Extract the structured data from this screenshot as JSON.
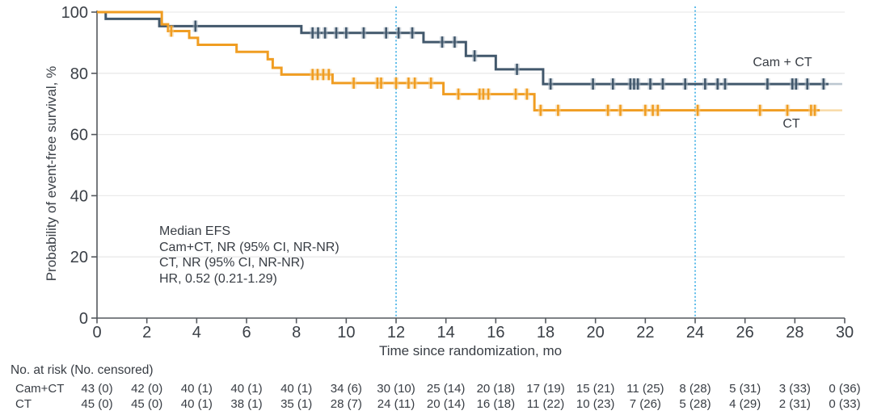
{
  "chart_data": {
    "type": "line",
    "subtype": "kaplan-meier-step",
    "title": "",
    "xlabel": "Time since randomization, mo",
    "ylabel": "Probability of event-free survival, %",
    "xlim": [
      0,
      30
    ],
    "ylim": [
      0,
      100
    ],
    "x_ticks": [
      0,
      2,
      4,
      6,
      8,
      10,
      12,
      14,
      16,
      18,
      20,
      22,
      24,
      26,
      28,
      30
    ],
    "y_ticks": [
      0,
      20,
      40,
      60,
      80,
      100
    ],
    "grid": "horizontal-light",
    "reference_lines_x": [
      12,
      24
    ],
    "legend_position": "inline-right-of-curves",
    "annotation": {
      "lines": [
        "Median EFS",
        "Cam+CT, NR (95% CI, NR-NR)",
        "CT, NR (95% CI, NR-NR)",
        "HR, 0.52 (0.21-1.29)"
      ]
    },
    "style": {
      "grid_color": "#eaeaea",
      "axis_color": "#54585e",
      "text_color": "#3a3f46",
      "reference_color": "#4fb6e8",
      "background": "#ffffff"
    },
    "series": [
      {
        "id": "cam-ct",
        "label": "Cam + CT",
        "color": "#42586c",
        "halo_color": "#aebbc6",
        "tail_color": "#bcc7d0",
        "steps": [
          [
            0,
            100
          ],
          [
            0.35,
            97.8
          ],
          [
            2.5,
            95.4
          ],
          [
            8.2,
            93.2
          ],
          [
            13.1,
            90.2
          ],
          [
            14.8,
            85.7
          ],
          [
            16.0,
            81.3
          ],
          [
            17.9,
            76.5
          ]
        ],
        "end_t": 29.35,
        "tail_t": 29.9,
        "censors": [
          [
            3.95,
            95.4
          ],
          [
            8.65,
            93.2
          ],
          [
            8.87,
            93.2
          ],
          [
            9.15,
            93.2
          ],
          [
            9.6,
            93.2
          ],
          [
            10.0,
            93.2
          ],
          [
            10.7,
            93.2
          ],
          [
            11.6,
            93.2
          ],
          [
            12.1,
            93.2
          ],
          [
            12.65,
            93.2
          ],
          [
            13.85,
            90.2
          ],
          [
            14.35,
            90.2
          ],
          [
            15.15,
            85.7
          ],
          [
            16.85,
            81.3
          ],
          [
            18.2,
            76.5
          ],
          [
            19.9,
            76.5
          ],
          [
            20.7,
            76.5
          ],
          [
            21.4,
            76.5
          ],
          [
            21.55,
            76.5
          ],
          [
            21.7,
            76.5
          ],
          [
            22.2,
            76.5
          ],
          [
            22.7,
            76.5
          ],
          [
            23.6,
            76.5
          ],
          [
            24.4,
            76.5
          ],
          [
            24.9,
            76.5
          ],
          [
            25.2,
            76.5
          ],
          [
            26.9,
            76.5
          ],
          [
            27.9,
            76.5
          ],
          [
            28.05,
            76.5
          ],
          [
            28.5,
            76.5
          ],
          [
            29.15,
            76.5
          ]
        ]
      },
      {
        "id": "ct",
        "label": "CT",
        "color": "#f09d22",
        "halo_color": "#f7d396",
        "tail_color": "#f8dcab",
        "steps": [
          [
            0,
            100
          ],
          [
            2.6,
            96.0
          ],
          [
            2.85,
            93.8
          ],
          [
            3.7,
            91.6
          ],
          [
            4.05,
            89.3
          ],
          [
            5.6,
            87.0
          ],
          [
            6.85,
            84.6
          ],
          [
            7.05,
            81.8
          ],
          [
            7.4,
            79.6
          ],
          [
            9.45,
            76.8
          ],
          [
            13.9,
            73.2
          ],
          [
            17.55,
            67.9
          ]
        ],
        "end_t": 29.0,
        "tail_t": 29.9,
        "censors": [
          [
            2.98,
            93.8
          ],
          [
            8.65,
            79.6
          ],
          [
            8.85,
            79.6
          ],
          [
            9.08,
            79.6
          ],
          [
            9.3,
            79.6
          ],
          [
            10.3,
            76.8
          ],
          [
            11.25,
            76.8
          ],
          [
            11.4,
            76.8
          ],
          [
            12.0,
            76.8
          ],
          [
            12.5,
            76.8
          ],
          [
            12.75,
            76.8
          ],
          [
            13.4,
            76.8
          ],
          [
            14.5,
            73.2
          ],
          [
            15.35,
            73.2
          ],
          [
            15.5,
            73.2
          ],
          [
            15.7,
            73.2
          ],
          [
            16.8,
            73.2
          ],
          [
            17.25,
            73.2
          ],
          [
            17.8,
            67.9
          ],
          [
            18.5,
            67.9
          ],
          [
            20.5,
            67.9
          ],
          [
            21.0,
            67.9
          ],
          [
            22.0,
            67.9
          ],
          [
            22.3,
            67.9
          ],
          [
            22.5,
            67.9
          ],
          [
            24.1,
            67.9
          ],
          [
            26.6,
            67.9
          ],
          [
            27.7,
            67.9
          ],
          [
            28.65,
            67.9
          ],
          [
            28.8,
            67.9
          ]
        ]
      }
    ],
    "risk_table": {
      "header": "No. at risk (No. censored)",
      "times": [
        0,
        2,
        4,
        6,
        8,
        10,
        12,
        14,
        16,
        18,
        20,
        22,
        24,
        26,
        28,
        30
      ],
      "rows": [
        {
          "label": "Cam+CT",
          "values": [
            "43 (0)",
            "42 (0)",
            "40 (1)",
            "40 (1)",
            "40 (1)",
            "34 (6)",
            "30 (10)",
            "25 (14)",
            "20 (18)",
            "17 (19)",
            "15 (21)",
            "11 (25)",
            "8 (28)",
            "5 (31)",
            "3 (33)",
            "0 (36)"
          ]
        },
        {
          "label": "CT",
          "values": [
            "45 (0)",
            "45 (0)",
            "40 (1)",
            "38 (1)",
            "35 (1)",
            "28 (7)",
            "24 (11)",
            "20 (14)",
            "16 (18)",
            "11 (22)",
            "10 (23)",
            "7 (26)",
            "5 (28)",
            "4 (29)",
            "2 (31)",
            "0 (33)"
          ]
        }
      ]
    }
  }
}
